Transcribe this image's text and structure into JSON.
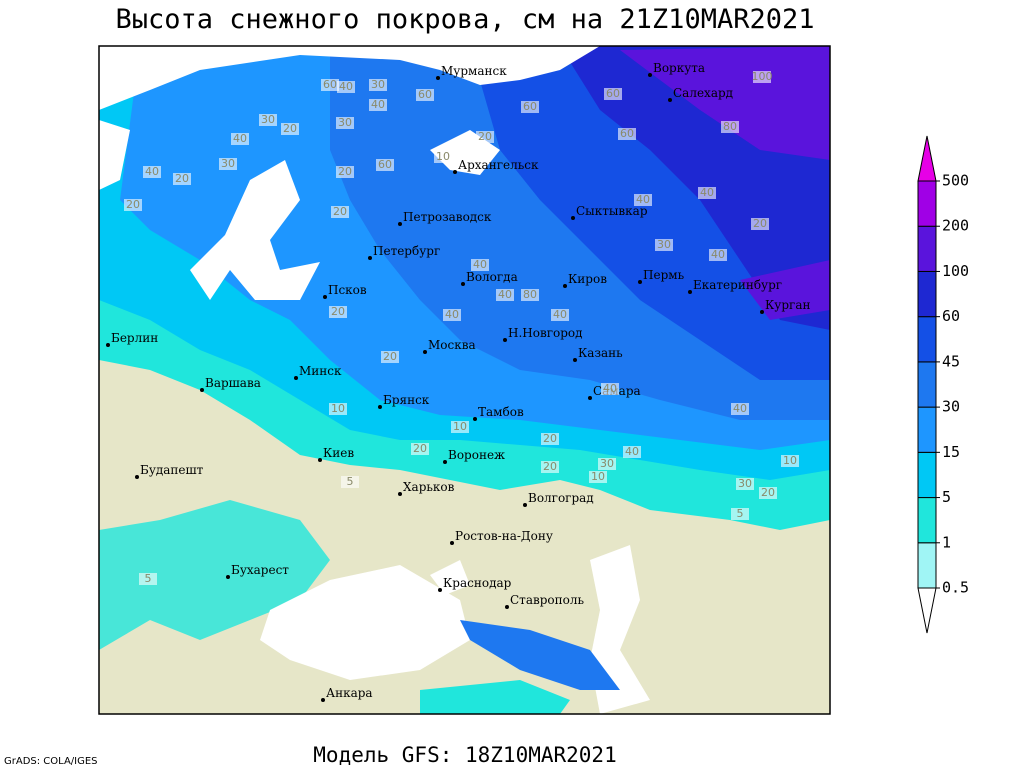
{
  "title": "Высота снежного покрова, см на 21Z10MAR2021",
  "model": "Модель GFS: 18Z10MAR2021",
  "credit": "GrADS: COLA/IGES",
  "legend": {
    "levels": [
      0.5,
      1,
      5,
      15,
      30,
      45,
      60,
      100,
      200,
      500
    ],
    "colors": [
      "#ffffff",
      "#a0f5f5",
      "#20e6dc",
      "#00c8f5",
      "#1e96ff",
      "#1e78f0",
      "#1450e6",
      "#1e28d2",
      "#5a14dc",
      "#a000e6",
      "#e600e6"
    ]
  },
  "cities": [
    "Мурманск",
    "Воркута",
    "Салехард",
    "Архангельск",
    "Петрозаводск",
    "Сыктывкар",
    "Петербург",
    "Вологда",
    "Киров",
    "Пермь",
    "Екатеринбург",
    "Курган",
    "Псков",
    "Н.Новгород",
    "Казань",
    "Москва",
    "Берлин",
    "Минск",
    "Варшава",
    "Самара",
    "Брянск",
    "Тамбов",
    "Киев",
    "Воронеж",
    "Будапешт",
    "Харьков",
    "Волгоград",
    "Ростов-на-Дону",
    "Бухарест",
    "Краснодар",
    "Ставрополь",
    "Анкара"
  ],
  "contour_labels": [
    60,
    40,
    30,
    40,
    60,
    30,
    20,
    20,
    30,
    40,
    20,
    40,
    20,
    30,
    20,
    60,
    10,
    20,
    100,
    60,
    60,
    80,
    40,
    40,
    30,
    40,
    20,
    40,
    40,
    60,
    80,
    40,
    40,
    20,
    20,
    10,
    10,
    20,
    20,
    40,
    40,
    10,
    30,
    20,
    5,
    5,
    10,
    30,
    20,
    40,
    5
  ]
}
